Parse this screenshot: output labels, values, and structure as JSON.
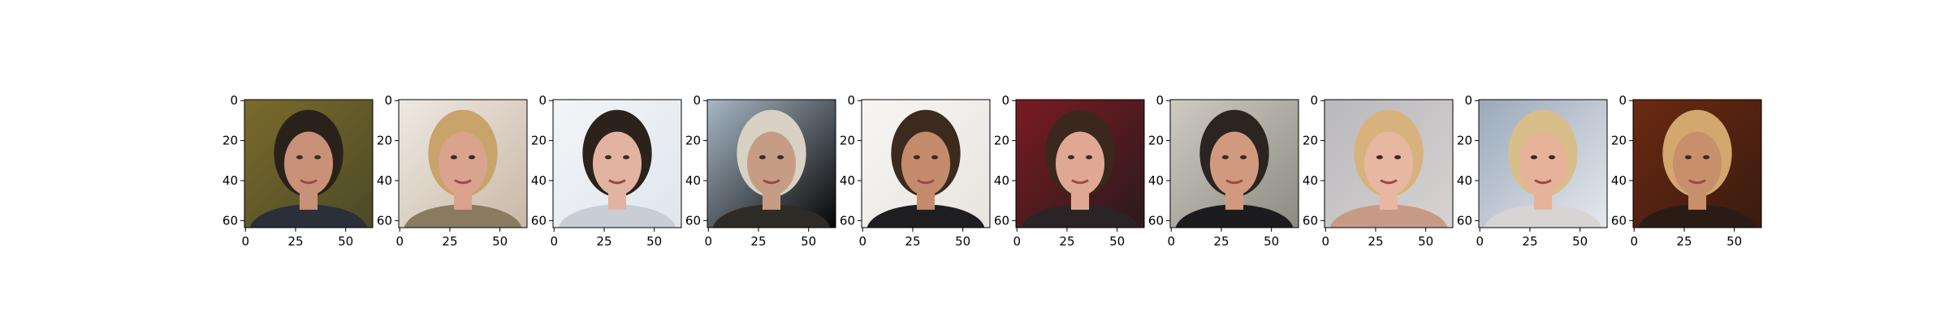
{
  "chart_data": [
    {
      "type": "image",
      "xticks": [
        "0",
        "25",
        "50"
      ],
      "yticks": [
        "0",
        "20",
        "40",
        "60"
      ],
      "xlim": [
        0,
        64
      ],
      "ylim": [
        64,
        0
      ],
      "palette": {
        "bg": "#7a6a2c",
        "bg2": "#4b4a26",
        "hair": "#2a221a",
        "skin": "#c99178",
        "body": "#2a2f38"
      }
    },
    {
      "type": "image",
      "xticks": [
        "0",
        "25",
        "50"
      ],
      "yticks": [
        "0",
        "20",
        "40",
        "60"
      ],
      "xlim": [
        0,
        64
      ],
      "ylim": [
        64,
        0
      ],
      "palette": {
        "bg": "#eee9e2",
        "bg2": "#c9b8a6",
        "hair": "#c8a36a",
        "skin": "#d9a38e",
        "body": "#8a7a60"
      }
    },
    {
      "type": "image",
      "xticks": [
        "0",
        "25",
        "50"
      ],
      "yticks": [
        "0",
        "20",
        "40",
        "60"
      ],
      "xlim": [
        0,
        64
      ],
      "ylim": [
        64,
        0
      ],
      "palette": {
        "bg": "#f3f5f7",
        "bg2": "#dfe6ee",
        "hair": "#2b221c",
        "skin": "#e2b3a0",
        "body": "#c9ced4"
      }
    },
    {
      "type": "image",
      "xticks": [
        "0",
        "25",
        "50"
      ],
      "yticks": [
        "0",
        "20",
        "40",
        "60"
      ],
      "xlim": [
        0,
        64
      ],
      "ylim": [
        64,
        0
      ],
      "palette": {
        "bg": "#a8b8c6",
        "bg2": "#050505",
        "hair": "#d8d2c4",
        "skin": "#c79c84",
        "body": "#2e2a26"
      }
    },
    {
      "type": "image",
      "xticks": [
        "0",
        "25",
        "50"
      ],
      "yticks": [
        "0",
        "20",
        "40",
        "60"
      ],
      "xlim": [
        0,
        64
      ],
      "ylim": [
        64,
        0
      ],
      "palette": {
        "bg": "#f7f6f4",
        "bg2": "#e8e4de",
        "hair": "#3c2a1e",
        "skin": "#c48c6c",
        "body": "#1e1e20"
      }
    },
    {
      "type": "image",
      "xticks": [
        "0",
        "25",
        "50"
      ],
      "yticks": [
        "0",
        "20",
        "40",
        "60"
      ],
      "xlim": [
        0,
        64
      ],
      "ylim": [
        64,
        0
      ],
      "palette": {
        "bg": "#7a1b22",
        "bg2": "#2a1a1c",
        "hair": "#3a281e",
        "skin": "#e0a892",
        "body": "#2a2426"
      }
    },
    {
      "type": "image",
      "xticks": [
        "0",
        "25",
        "50"
      ],
      "yticks": [
        "0",
        "20",
        "40",
        "60"
      ],
      "xlim": [
        0,
        64
      ],
      "ylim": [
        64,
        0
      ],
      "palette": {
        "bg": "#cfcbc2",
        "bg2": "#8c8a82",
        "hair": "#2c2420",
        "skin": "#d19a7e",
        "body": "#1c1c1e"
      }
    },
    {
      "type": "image",
      "xticks": [
        "0",
        "25",
        "50"
      ],
      "yticks": [
        "0",
        "20",
        "40",
        "60"
      ],
      "xlim": [
        0,
        64
      ],
      "ylim": [
        64,
        0
      ],
      "palette": {
        "bg": "#b9b8bc",
        "bg2": "#d7d3d2",
        "hair": "#d8b27c",
        "skin": "#e8b7a2",
        "body": "#c79a86"
      }
    },
    {
      "type": "image",
      "xticks": [
        "0",
        "25",
        "50"
      ],
      "yticks": [
        "0",
        "20",
        "40",
        "60"
      ],
      "xlim": [
        0,
        64
      ],
      "ylim": [
        64,
        0
      ],
      "palette": {
        "bg": "#9aa9bb",
        "bg2": "#e6e8ee",
        "hair": "#d8bf8a",
        "skin": "#e6b29a",
        "body": "#d8d4d4"
      }
    },
    {
      "type": "image",
      "xticks": [
        "0",
        "25",
        "50"
      ],
      "yticks": [
        "0",
        "20",
        "40",
        "60"
      ],
      "xlim": [
        0,
        64
      ],
      "ylim": [
        64,
        0
      ],
      "palette": {
        "bg": "#6b2a12",
        "bg2": "#3a1a10",
        "hair": "#d2a86e",
        "skin": "#c8906a",
        "body": "#2a1c14"
      }
    }
  ]
}
